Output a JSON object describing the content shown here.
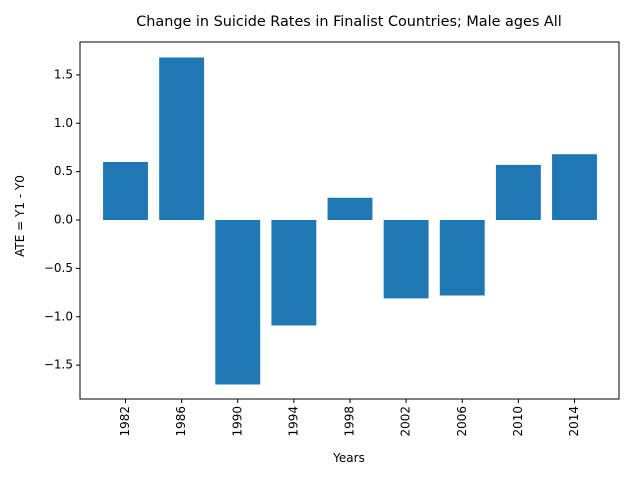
{
  "chart_data": {
    "type": "bar",
    "title": "Change in Suicide Rates in Finalist Countries; Male ages All",
    "xlabel": "Years",
    "ylabel": "ATE = Y1 - Y0",
    "categories": [
      "1982",
      "1986",
      "1990",
      "1994",
      "1998",
      "2002",
      "2006",
      "2010",
      "2014"
    ],
    "values": [
      0.6,
      1.68,
      -1.7,
      -1.09,
      0.23,
      -0.81,
      -0.78,
      0.57,
      0.68
    ],
    "ylim": [
      -1.85,
      1.84
    ],
    "yticks": [
      -1.5,
      -1.0,
      -0.5,
      0.0,
      0.5,
      1.0,
      1.5
    ],
    "ytick_labels": [
      "−1.5",
      "−1.0",
      "−0.5",
      "0.0",
      "0.5",
      "1.0",
      "1.5"
    ],
    "bar_color": "#1f77b4",
    "grid": false,
    "legend": "none"
  }
}
